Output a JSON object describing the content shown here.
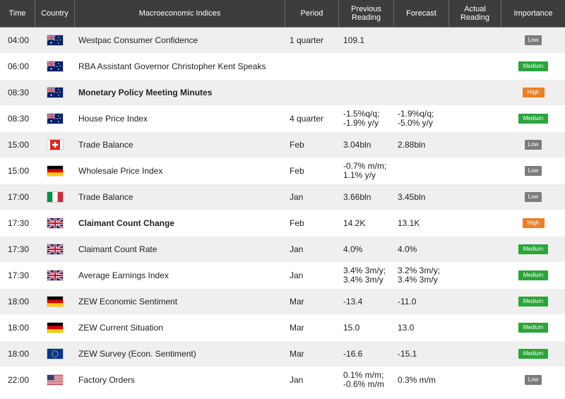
{
  "header": {
    "time": "Time",
    "country": "Country",
    "indices": "Macroeconomic Indices",
    "period": "Period",
    "previous_line1": "Previous",
    "previous_line2": "Reading",
    "forecast": "Forecast",
    "actual_line1": "Actual",
    "actual_line2": "Reading",
    "importance": "Importance"
  },
  "rows": [
    {
      "time": "04:00",
      "flag": "australia-flag",
      "name": "Westpac Consumer Confidence",
      "bold": false,
      "period": "1 quarter",
      "prev1": "109.1",
      "prev2": "",
      "fc1": "",
      "fc2": "",
      "actual": "",
      "importance": "Low",
      "importance_level": "low"
    },
    {
      "time": "06:00",
      "flag": "australia-flag",
      "name": "RBA Assistant Governor Christopher Kent Speaks",
      "bold": false,
      "period": "",
      "prev1": "",
      "prev2": "",
      "fc1": "",
      "fc2": "",
      "actual": "",
      "importance": "Medium",
      "importance_level": "medium"
    },
    {
      "time": "08:30",
      "flag": "australia-flag",
      "name": "Monetary Policy Meeting Minutes",
      "bold": true,
      "period": "",
      "prev1": "",
      "prev2": "",
      "fc1": "",
      "fc2": "",
      "actual": "",
      "importance": "High",
      "importance_level": "high"
    },
    {
      "time": "08:30",
      "flag": "australia-flag",
      "name": "House Price Index",
      "bold": false,
      "period": "4 quarter",
      "prev1": "-1.5%q/q;",
      "prev2": "-1.9% y/y",
      "fc1": "-1.9%q/q;",
      "fc2": "-5.0% y/y",
      "actual": "",
      "importance": "Medium",
      "importance_level": "medium"
    },
    {
      "time": "15:00",
      "flag": "switzerland-flag",
      "name": "Trade Balance",
      "bold": false,
      "period": "Feb",
      "prev1": "3.04bln",
      "prev2": "",
      "fc1": "2.88bln",
      "fc2": "",
      "actual": "",
      "importance": "Low",
      "importance_level": "low"
    },
    {
      "time": "15:00",
      "flag": "germany-flag",
      "name": "Wholesale Price Index",
      "bold": false,
      "period": "Feb",
      "prev1": "-0.7% m/m;",
      "prev2": "1.1% y/y",
      "fc1": "",
      "fc2": "",
      "actual": "",
      "importance": "Low",
      "importance_level": "low"
    },
    {
      "time": "17:00",
      "flag": "italy-flag",
      "name": "Trade Balance",
      "bold": false,
      "period": "Jan",
      "prev1": "3.66bln",
      "prev2": "",
      "fc1": "3.45bln",
      "fc2": "",
      "actual": "",
      "importance": "Low",
      "importance_level": "low"
    },
    {
      "time": "17:30",
      "flag": "uk-flag",
      "name": "Claimant Count Change",
      "bold": true,
      "period": "Feb",
      "prev1": "14.2K",
      "prev2": "",
      "fc1": "13.1K",
      "fc2": "",
      "actual": "",
      "importance": "High",
      "importance_level": "high"
    },
    {
      "time": "17:30",
      "flag": "uk-flag",
      "name": "Claimant Count Rate",
      "bold": false,
      "period": "Jan",
      "prev1": "4.0%",
      "prev2": "",
      "fc1": "4.0%",
      "fc2": "",
      "actual": "",
      "importance": "Medium",
      "importance_level": "medium"
    },
    {
      "time": "17:30",
      "flag": "uk-flag",
      "name": "Average Earnings Index",
      "bold": false,
      "period": "Jan",
      "prev1": "3.4% 3m/y;",
      "prev2": "3.4% 3m/y",
      "fc1": "3.2% 3m/y;",
      "fc2": "3.4% 3m/y",
      "actual": "",
      "importance": "Medium",
      "importance_level": "medium"
    },
    {
      "time": "18:00",
      "flag": "germany-flag",
      "name": "ZEW Economic Sentiment",
      "bold": false,
      "period": "Mar",
      "prev1": "-13.4",
      "prev2": "",
      "fc1": "-11.0",
      "fc2": "",
      "actual": "",
      "importance": "Medium",
      "importance_level": "medium"
    },
    {
      "time": "18:00",
      "flag": "germany-flag",
      "name": "ZEW Current Situation",
      "bold": false,
      "period": "Mar",
      "prev1": "15.0",
      "prev2": "",
      "fc1": "13.0",
      "fc2": "",
      "actual": "",
      "importance": "Medium",
      "importance_level": "medium"
    },
    {
      "time": "18:00",
      "flag": "eu-flag",
      "name": "ZEW Survey (Econ. Sentiment)",
      "bold": false,
      "period": "Mar",
      "prev1": "-16.6",
      "prev2": "",
      "fc1": "-15.1",
      "fc2": "",
      "actual": "",
      "importance": "Medium",
      "importance_level": "medium"
    },
    {
      "time": "22:00",
      "flag": "usa-flag",
      "name": "Factory Orders",
      "bold": false,
      "period": "Jan",
      "prev1": "0.1% m/m;",
      "prev2": "-0.6% m/m",
      "fc1": "0.3% m/m",
      "fc2": "",
      "actual": "",
      "importance": "Low",
      "importance_level": "low"
    }
  ],
  "colors": {
    "header_bg": "#3d3d3d",
    "row_alt": "#efefef",
    "low": "#7c7c7c",
    "medium": "#2aa53a",
    "high": "#ee7f22"
  }
}
